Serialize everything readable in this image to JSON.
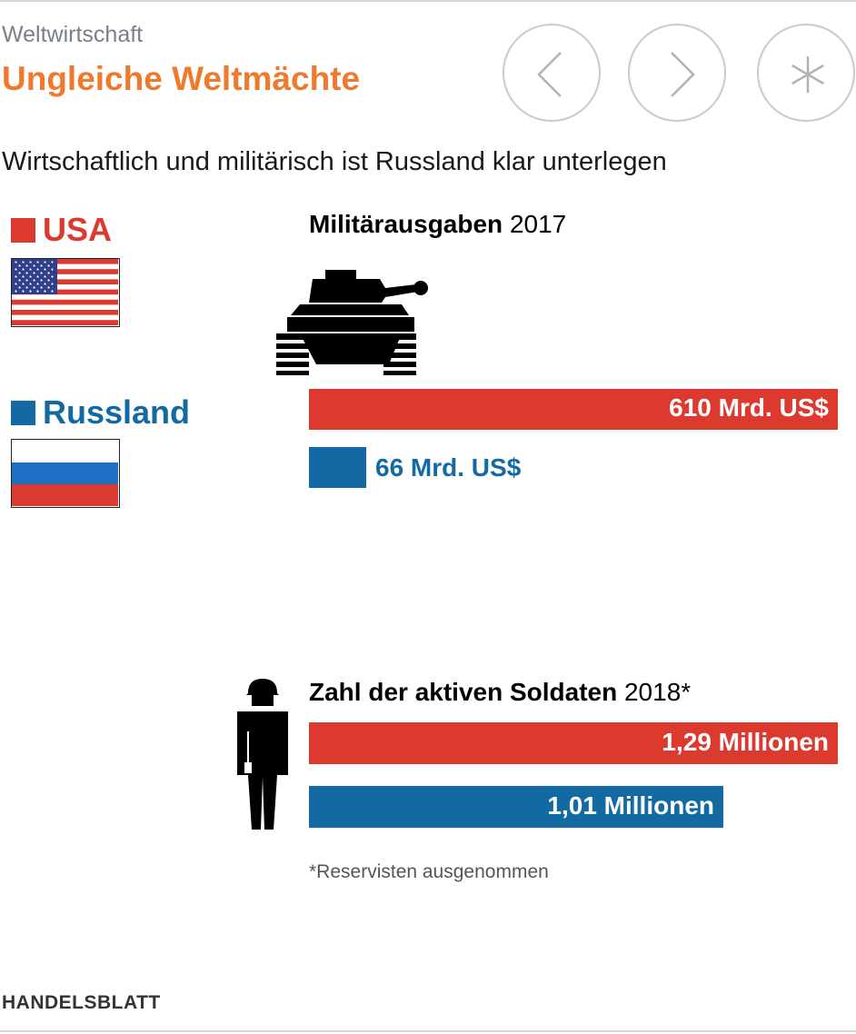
{
  "header": {
    "section": "Weltwirtschaft",
    "title": "Ungleiche Weltmächte",
    "subtitle": "Wirtschaftlich und militärisch ist Russland klar unterlegen"
  },
  "nav": {
    "prev_icon": "chevron-left-icon",
    "next_icon": "chevron-right-icon",
    "asterisk_icon": "asterisk-icon"
  },
  "legend": {
    "usa": {
      "label": "USA",
      "color": "#dd3a2f",
      "flag_icon": "usa-flag-icon"
    },
    "russia": {
      "label": "Russland",
      "color": "#136aa3",
      "flag_icon": "russia-flag-icon"
    }
  },
  "chart_data": [
    {
      "type": "bar",
      "title_bold": "Militärausgaben",
      "title_rest": " 2017",
      "icon": "tank-icon",
      "unit": "Mrd. US$",
      "series": [
        {
          "name": "USA",
          "value": 610,
          "label": "610 Mrd. US$",
          "color": "#dd3a2f"
        },
        {
          "name": "Russland",
          "value": 66,
          "label": "66 Mrd. US$",
          "color": "#136aa3"
        }
      ],
      "xlim": [
        0,
        610
      ]
    },
    {
      "type": "bar",
      "title_bold": "Zahl der aktiven Soldaten",
      "title_rest": " 2018*",
      "icon": "soldier-icon",
      "unit": "Millionen",
      "series": [
        {
          "name": "USA",
          "value": 1.29,
          "label": "1,29 Millionen",
          "color": "#dd3a2f"
        },
        {
          "name": "Russland",
          "value": 1.01,
          "label": "1,01 Millionen",
          "color": "#136aa3"
        }
      ],
      "xlim": [
        0,
        1.29
      ]
    }
  ],
  "footnote": "*Reservisten ausgenommen",
  "brand": "HANDELSBLATT"
}
